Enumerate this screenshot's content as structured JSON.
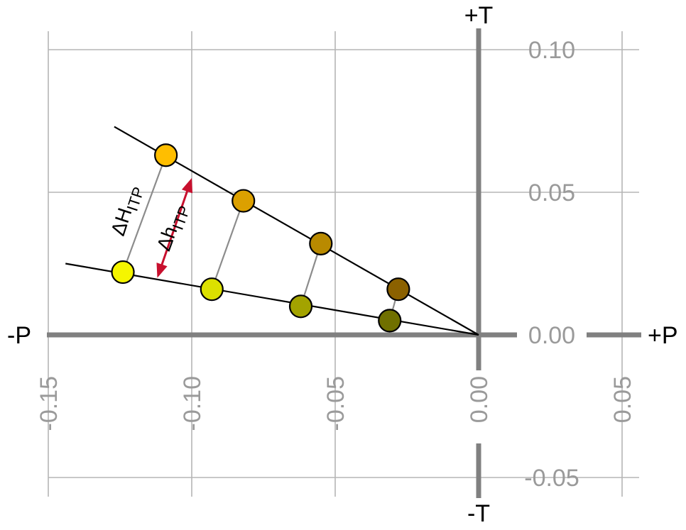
{
  "chart_data": {
    "type": "scatter",
    "title": "",
    "xlabel": "",
    "ylabel": "",
    "xlim": [
      -0.15,
      0.05
    ],
    "ylim": [
      -0.05,
      0.1
    ],
    "x_ticks": [
      -0.15,
      -0.1,
      -0.05,
      0.0,
      0.05
    ],
    "y_ticks": [
      -0.05,
      0.0,
      0.05,
      0.1
    ],
    "x_tick_labels": [
      "-0.15",
      "-0.10",
      "-0.05",
      "0.00",
      "0.05"
    ],
    "y_tick_labels": [
      "-0.05",
      "0.00",
      "0.05",
      "0.10"
    ],
    "grid": true,
    "axis_end_labels": {
      "x_neg": "-P",
      "x_pos": "+P",
      "y_pos": "+T",
      "y_neg": "-T"
    },
    "series": [
      {
        "points": [
          {
            "x": -0.109,
            "y": 0.063,
            "color": "#FFBE00"
          },
          {
            "x": -0.082,
            "y": 0.047,
            "color": "#DCA000"
          },
          {
            "x": -0.055,
            "y": 0.032,
            "color": "#B98A00"
          },
          {
            "x": -0.028,
            "y": 0.016,
            "color": "#8B6100"
          }
        ],
        "line_from": [
          -0.127,
          0.073
        ],
        "line_to": [
          0.0,
          0.0
        ]
      },
      {
        "points": [
          {
            "x": -0.124,
            "y": 0.022,
            "color": "#F5F500"
          },
          {
            "x": -0.093,
            "y": 0.016,
            "color": "#DCE000"
          },
          {
            "x": -0.062,
            "y": 0.01,
            "color": "#A3A300"
          },
          {
            "x": -0.031,
            "y": 0.005,
            "color": "#707000"
          }
        ],
        "line_from": [
          -0.144,
          0.025
        ],
        "line_to": [
          0.0,
          0.0
        ]
      }
    ],
    "connectors": [
      {
        "from": [
          -0.124,
          0.022
        ],
        "to": [
          -0.109,
          0.063
        ]
      },
      {
        "from": [
          -0.093,
          0.016
        ],
        "to": [
          -0.082,
          0.047
        ]
      },
      {
        "from": [
          -0.062,
          0.01
        ],
        "to": [
          -0.055,
          0.032
        ]
      },
      {
        "from": [
          -0.031,
          0.005
        ],
        "to": [
          -0.028,
          0.016
        ]
      }
    ],
    "arrow": {
      "from": [
        -0.112,
        0.02
      ],
      "to": [
        -0.1,
        0.055
      ],
      "color": "#C8102E"
    },
    "annotations": [
      {
        "main": "ΔH",
        "sub": "ITP",
        "x": -0.121,
        "y": 0.043,
        "rotation": -72
      },
      {
        "main": "Δh",
        "sub": "ITP",
        "x": -0.105,
        "y": 0.037,
        "rotation": -70
      }
    ],
    "colors": {
      "grid": "#b5b5b5",
      "main_axis": "#808080",
      "tick_label": "#9a9a9a",
      "connector": "#8c8c8c"
    }
  }
}
